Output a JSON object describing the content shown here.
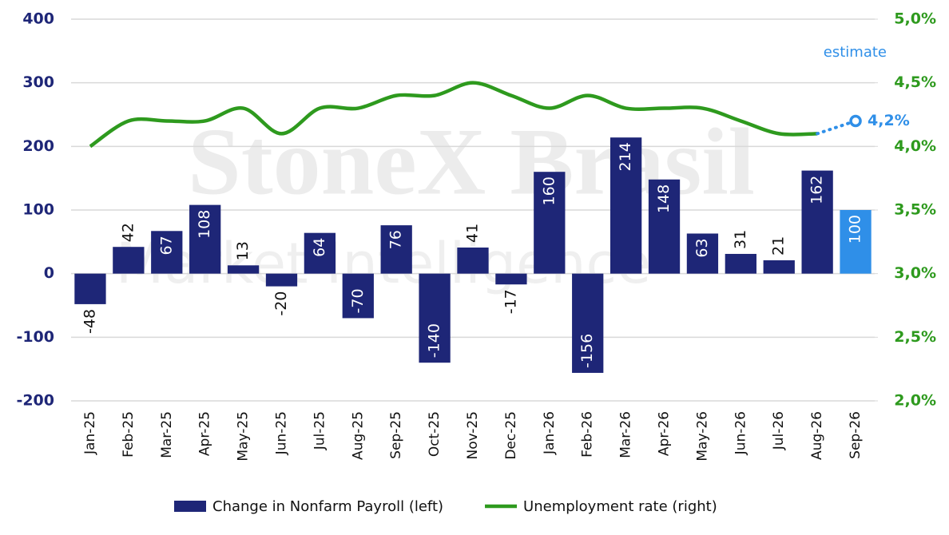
{
  "chart_data": {
    "type": "bar",
    "watermark": {
      "title": "StoneX Brasil",
      "subtitle": "Market Intelligence"
    },
    "categories": [
      "Jan-25",
      "Feb-25",
      "Mar-25",
      "Apr-25",
      "May-25",
      "Jun-25",
      "Jul-25",
      "Aug-25",
      "Sep-25",
      "Oct-25",
      "Nov-25",
      "Dec-25",
      "Jan-26",
      "Feb-26",
      "Mar-26",
      "Apr-26",
      "May-26",
      "Jun-26",
      "Jul-26",
      "Aug-26",
      "Sep-26"
    ],
    "series": [
      {
        "name": "Change in Nonfarm Payroll (left)",
        "type": "bar",
        "color": "#1e2677",
        "colors": [
          "#1e2677",
          "#1e2677",
          "#1e2677",
          "#1e2677",
          "#1e2677",
          "#1e2677",
          "#1e2677",
          "#1e2677",
          "#1e2677",
          "#1e2677",
          "#1e2677",
          "#1e2677",
          "#1e2677",
          "#1e2677",
          "#1e2677",
          "#1e2677",
          "#1e2677",
          "#1e2677",
          "#1e2677",
          "#1e2677",
          "#2f8fe8"
        ],
        "values": [
          -48,
          42,
          67,
          108,
          13,
          -20,
          64,
          -70,
          76,
          -140,
          41,
          -17,
          160,
          -156,
          214,
          148,
          63,
          31,
          21,
          162,
          100
        ]
      },
      {
        "name": "Unemployment rate (right)",
        "type": "line",
        "axis": "y2",
        "color": "#2e9a1e",
        "values": [
          4.0,
          4.2,
          4.2,
          4.2,
          4.3,
          4.1,
          4.3,
          4.3,
          4.4,
          4.4,
          4.5,
          4.4,
          4.3,
          4.4,
          4.3,
          4.3,
          4.3,
          4.2,
          4.1,
          4.1,
          null
        ]
      }
    ],
    "estimate": {
      "label": "estimate",
      "value": 4.2,
      "value_label": "4,2%",
      "color": "#2f8fe8"
    },
    "ylim": [
      -200,
      400
    ],
    "yticks": [
      -200,
      -100,
      0,
      100,
      200,
      300,
      400
    ],
    "y2lim": [
      2.0,
      5.0
    ],
    "y2ticks": [
      {
        "value": 2.0,
        "label": "2,0%"
      },
      {
        "value": 2.5,
        "label": "2,5%"
      },
      {
        "value": 3.0,
        "label": "3,0%"
      },
      {
        "value": 3.5,
        "label": "3,5%"
      },
      {
        "value": 4.0,
        "label": "4,0%"
      },
      {
        "value": 4.5,
        "label": "4,5%"
      },
      {
        "value": 5.0,
        "label": "5,0%"
      }
    ],
    "grid": true,
    "legend": "bottom"
  }
}
